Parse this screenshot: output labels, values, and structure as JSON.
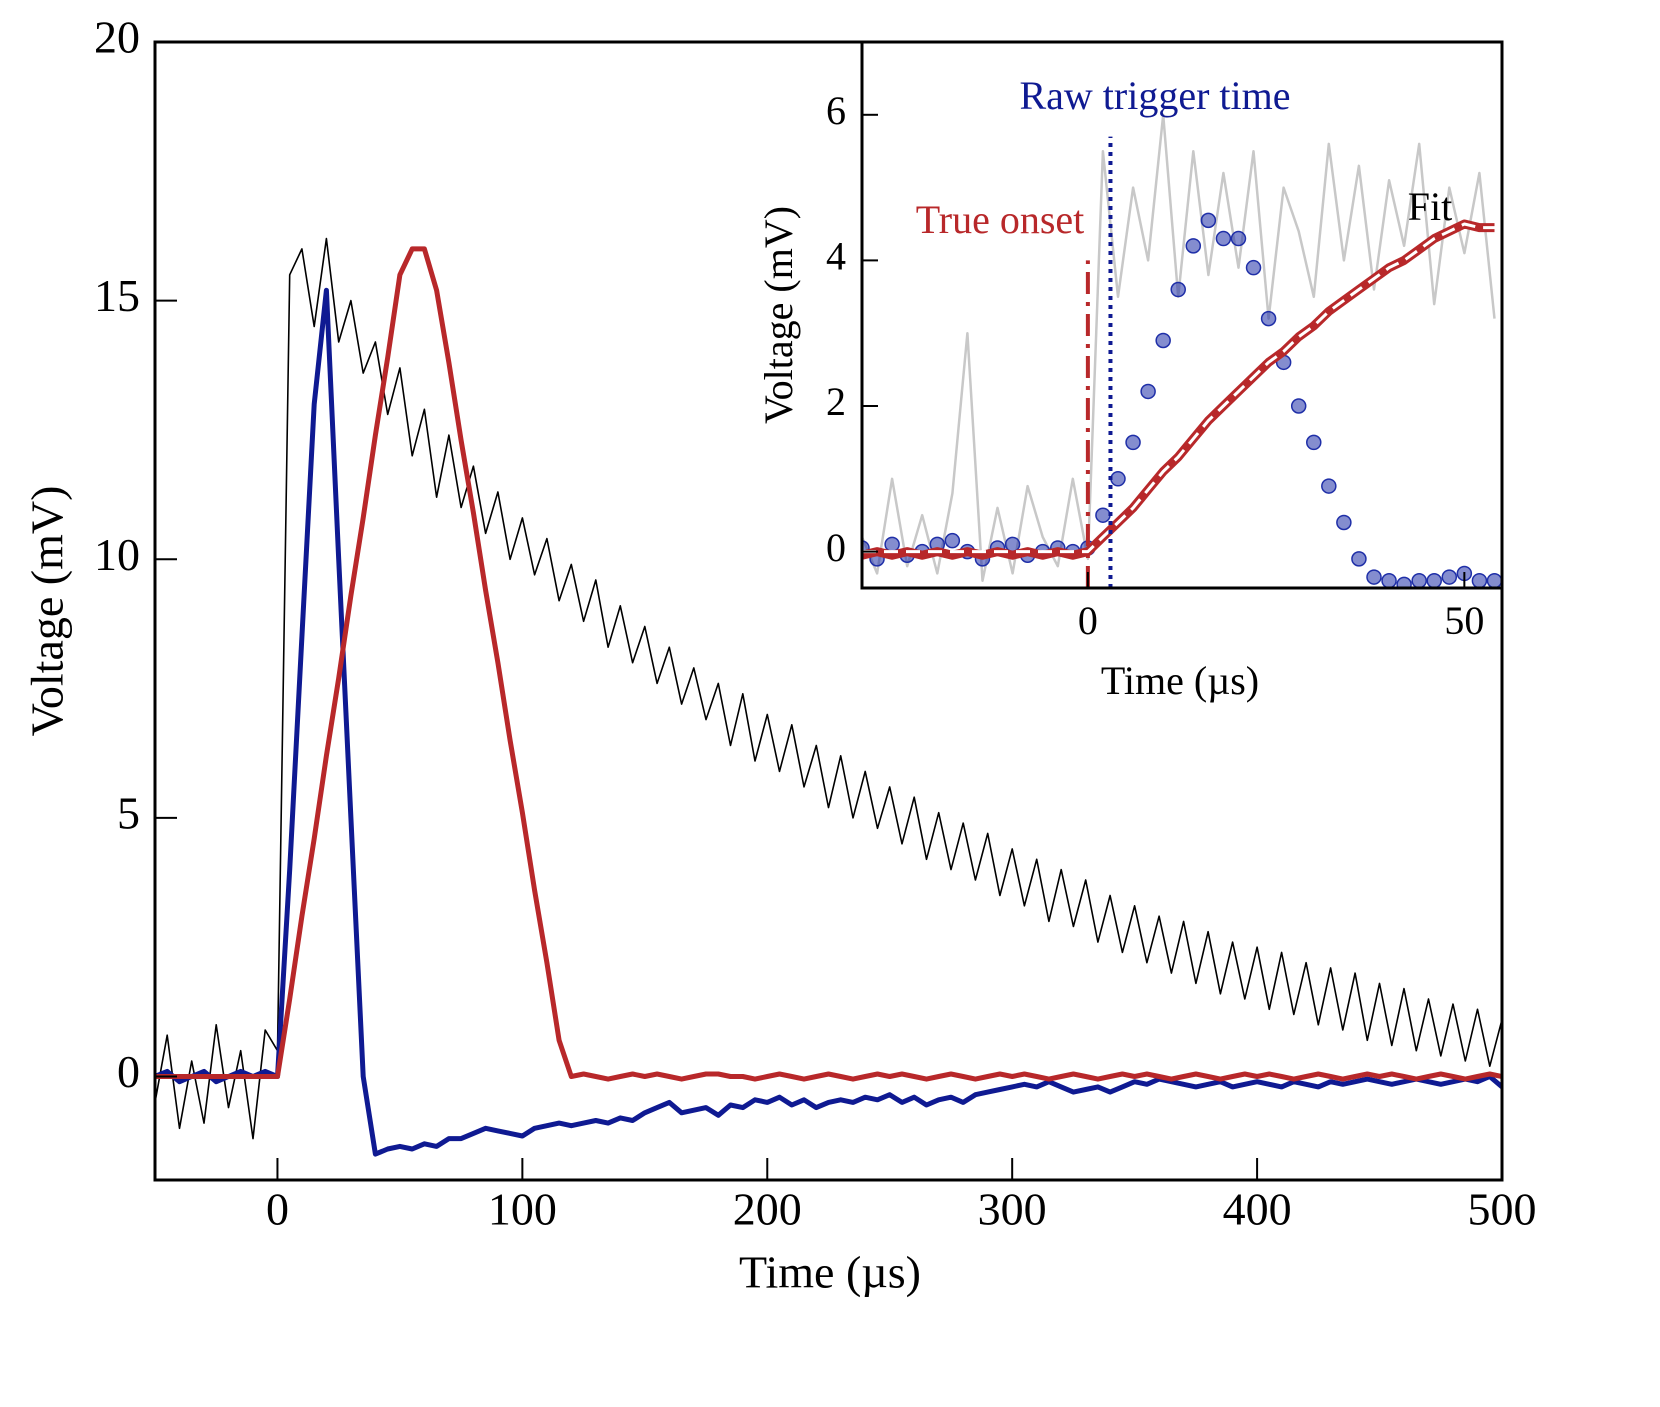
{
  "chart_data": [
    {
      "type": "line",
      "xlabel": "Time (µs)",
      "ylabel": "Voltage (mV)",
      "xlim": [
        -50,
        500
      ],
      "ylim": [
        -2,
        20
      ],
      "xticks": [
        0,
        100,
        200,
        300,
        400,
        500
      ],
      "yticks": [
        0,
        5,
        10,
        15,
        20
      ],
      "x": [
        -50,
        -45,
        -40,
        -35,
        -30,
        -25,
        -20,
        -15,
        -10,
        -5,
        0,
        5,
        10,
        15,
        20,
        25,
        30,
        35,
        40,
        45,
        50,
        55,
        60,
        65,
        70,
        75,
        80,
        85,
        90,
        95,
        100,
        105,
        110,
        115,
        120,
        125,
        130,
        135,
        140,
        145,
        150,
        155,
        160,
        165,
        170,
        175,
        180,
        185,
        190,
        195,
        200,
        205,
        210,
        215,
        220,
        225,
        230,
        235,
        240,
        245,
        250,
        255,
        260,
        265,
        270,
        275,
        280,
        285,
        290,
        295,
        300,
        305,
        310,
        315,
        320,
        325,
        330,
        335,
        340,
        345,
        350,
        355,
        360,
        365,
        370,
        375,
        380,
        385,
        390,
        395,
        400,
        405,
        410,
        415,
        420,
        425,
        430,
        435,
        440,
        445,
        450,
        455,
        460,
        465,
        470,
        475,
        480,
        485,
        490,
        495,
        500
      ],
      "series": [
        {
          "color": "#000000",
          "values": [
            -0.5,
            0.8,
            -1,
            0.3,
            -0.9,
            1,
            -0.6,
            0.5,
            -1.2,
            0.9,
            0.5,
            15.5,
            16,
            14.5,
            16.2,
            14.2,
            15,
            13.6,
            14.2,
            12.8,
            13.7,
            12,
            12.9,
            11.2,
            12.4,
            11,
            11.8,
            10.5,
            11.3,
            10,
            10.8,
            9.7,
            10.4,
            9.2,
            9.9,
            8.8,
            9.6,
            8.3,
            9.1,
            8,
            8.7,
            7.6,
            8.3,
            7.2,
            7.9,
            6.9,
            7.6,
            6.4,
            7.4,
            6.1,
            7,
            5.9,
            6.8,
            5.6,
            6.4,
            5.2,
            6.2,
            5,
            5.9,
            4.8,
            5.6,
            4.5,
            5.4,
            4.2,
            5.1,
            4,
            4.9,
            3.8,
            4.7,
            3.5,
            4.4,
            3.3,
            4.2,
            3,
            4,
            2.9,
            3.8,
            2.6,
            3.5,
            2.4,
            3.3,
            2.2,
            3.1,
            2,
            3,
            1.8,
            2.8,
            1.6,
            2.6,
            1.5,
            2.5,
            1.3,
            2.4,
            1.2,
            2.2,
            1,
            2.1,
            0.9,
            2,
            0.7,
            1.8,
            0.6,
            1.7,
            0.5,
            1.5,
            0.4,
            1.4,
            0.3,
            1.3,
            0.2,
            1.1
          ]
        },
        {
          "color": "#0f1a92",
          "values": [
            0,
            0.1,
            -0.1,
            0,
            0.1,
            -0.1,
            0,
            0.1,
            0,
            0.1,
            0,
            4,
            8.5,
            13,
            15.2,
            10,
            5,
            0,
            -1.5,
            -1.4,
            -1.35,
            -1.4,
            -1.3,
            -1.35,
            -1.2,
            -1.2,
            -1.1,
            -1,
            -1.05,
            -1.1,
            -1.15,
            -1,
            -0.95,
            -0.9,
            -0.95,
            -0.9,
            -0.85,
            -0.9,
            -0.8,
            -0.85,
            -0.7,
            -0.6,
            -0.5,
            -0.7,
            -0.65,
            -0.6,
            -0.75,
            -0.55,
            -0.6,
            -0.45,
            -0.5,
            -0.4,
            -0.55,
            -0.45,
            -0.6,
            -0.5,
            -0.45,
            -0.5,
            -0.4,
            -0.45,
            -0.35,
            -0.5,
            -0.4,
            -0.55,
            -0.45,
            -0.4,
            -0.5,
            -0.35,
            -0.3,
            -0.25,
            -0.2,
            -0.15,
            -0.2,
            -0.1,
            -0.2,
            -0.3,
            -0.25,
            -0.2,
            -0.3,
            -0.2,
            -0.1,
            -0.15,
            -0.05,
            -0.1,
            -0.15,
            -0.2,
            -0.15,
            -0.1,
            -0.2,
            -0.15,
            -0.1,
            -0.15,
            -0.2,
            -0.1,
            -0.15,
            -0.2,
            -0.1,
            -0.15,
            -0.1,
            -0.05,
            -0.1,
            -0.15,
            -0.1,
            -0.05,
            -0.1,
            -0.15,
            -0.1,
            -0.05,
            -0.1,
            0,
            -0.2
          ]
        },
        {
          "color": "#b8282a",
          "values": [
            0,
            0,
            0,
            0,
            0,
            0,
            0,
            0,
            0,
            0,
            0,
            1.5,
            3.1,
            4.6,
            6.2,
            7.7,
            9.3,
            10.8,
            12.4,
            13.9,
            15.5,
            16,
            16,
            15.2,
            13.8,
            12.3,
            10.9,
            9.4,
            8,
            6.5,
            5.1,
            3.6,
            2.2,
            0.7,
            0,
            0.05,
            0,
            -0.05,
            0,
            0.05,
            0,
            0.05,
            0,
            -0.05,
            0,
            0.05,
            0.05,
            0,
            0,
            -0.05,
            0,
            0.05,
            0,
            -0.05,
            0,
            0.05,
            0,
            -0.05,
            0,
            0.05,
            0,
            0.05,
            0,
            -0.05,
            0,
            0.05,
            0,
            -0.05,
            0,
            0.05,
            0,
            0.05,
            0,
            -0.05,
            0,
            0.05,
            0,
            -0.05,
            0,
            0.05,
            0,
            0.05,
            0,
            -0.05,
            0,
            0.05,
            0,
            -0.05,
            0,
            0.05,
            0,
            0.05,
            0,
            -0.05,
            0,
            0.05,
            0,
            -0.05,
            0,
            0.05,
            0,
            0.05,
            0,
            -0.05,
            0,
            0.05,
            0,
            -0.05,
            0,
            0.05,
            0
          ]
        }
      ]
    },
    {
      "type": "line",
      "xlabel": "Time (µs)",
      "ylabel": "Voltage (mV)",
      "xlim": [
        -30,
        55
      ],
      "ylim": [
        -0.5,
        7
      ],
      "xticks": [
        0,
        50
      ],
      "yticks": [
        0,
        2,
        4,
        6
      ],
      "x": [
        -30,
        -28,
        -26,
        -24,
        -22,
        -20,
        -18,
        -16,
        -14,
        -12,
        -10,
        -8,
        -6,
        -4,
        -2,
        0,
        2,
        4,
        6,
        8,
        10,
        12,
        14,
        16,
        18,
        20,
        22,
        24,
        26,
        28,
        30,
        32,
        34,
        36,
        38,
        40,
        42,
        44,
        46,
        48,
        50,
        52,
        54
      ],
      "series": [
        {
          "color": "#c8c8c8",
          "values": [
            0.2,
            -0.3,
            1,
            -0.2,
            0.5,
            -0.3,
            0.8,
            3,
            -0.4,
            0.6,
            -0.3,
            0.9,
            0.2,
            -0.2,
            1,
            -0.1,
            5.5,
            3.5,
            5,
            4,
            6,
            3.5,
            5.5,
            3.8,
            5.2,
            3.9,
            5.5,
            3.2,
            5,
            4.4,
            3.5,
            5.6,
            4,
            5.3,
            3.6,
            5.1,
            4.2,
            5.6,
            3.4,
            5,
            4.1,
            5.2,
            3.2
          ]
        },
        {
          "color": "#1f2fa8",
          "marker": "circle",
          "values": [
            0.05,
            -0.1,
            0.1,
            -0.05,
            0,
            0.1,
            0.15,
            0,
            -0.1,
            0.05,
            0.1,
            -0.05,
            0,
            0.05,
            0,
            0.05,
            0.5,
            1,
            1.5,
            2.2,
            2.9,
            3.6,
            4.2,
            4.55,
            4.3,
            4.3,
            3.9,
            3.2,
            2.6,
            2,
            1.5,
            0.9,
            0.4,
            -0.1,
            -0.35,
            -0.4,
            -0.45,
            -0.4,
            -0.4,
            -0.35,
            -0.3,
            -0.4,
            -0.4
          ]
        },
        {
          "color": "#b8282a",
          "values": [
            -0.05,
            0,
            -0.05,
            0,
            -0.05,
            0,
            -0.05,
            0,
            -0.05,
            0,
            -0.05,
            0,
            -0.05,
            0,
            -0.05,
            0,
            0.2,
            0.4,
            0.6,
            0.85,
            1.1,
            1.3,
            1.55,
            1.8,
            2,
            2.2,
            2.4,
            2.6,
            2.75,
            2.95,
            3.1,
            3.3,
            3.45,
            3.6,
            3.75,
            3.9,
            4,
            4.15,
            4.3,
            4.4,
            4.5,
            4.45,
            4.45
          ]
        },
        {
          "color": "#ffffff",
          "style": "dashed",
          "values": [
            0,
            0,
            0,
            0,
            0,
            0,
            0,
            0,
            0,
            0,
            0,
            0,
            0,
            0,
            0,
            0,
            0.2,
            0.4,
            0.6,
            0.85,
            1.1,
            1.3,
            1.55,
            1.8,
            2,
            2.2,
            2.4,
            2.6,
            2.75,
            2.95,
            3.1,
            3.3,
            3.45,
            3.6,
            3.75,
            3.9,
            4,
            4.15,
            4.3,
            4.4,
            4.5,
            4.45,
            4.45
          ]
        }
      ],
      "vlines": [
        {
          "x": 0,
          "ymax": 4,
          "color": "#b8282a",
          "style": "dashdot"
        },
        {
          "x": 3,
          "ymax": 5.7,
          "color": "#0f1a92",
          "style": "dotted"
        }
      ],
      "annotations": [
        {
          "text": "Raw trigger time",
          "color": "#0f1a92"
        },
        {
          "text": "True onset",
          "color": "#b8282a"
        },
        {
          "text": "Fit",
          "color": "#000000"
        }
      ]
    }
  ]
}
